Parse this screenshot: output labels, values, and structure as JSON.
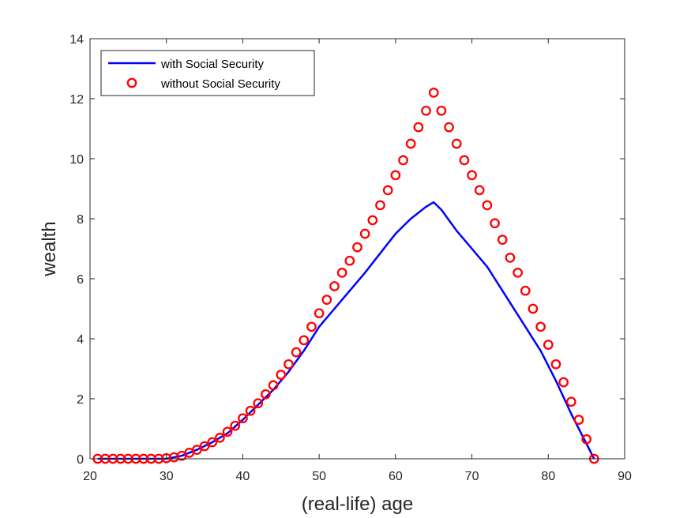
{
  "chart_data": {
    "type": "line",
    "xlabel": "(real-life) age",
    "ylabel": "wealth",
    "xlim": [
      20,
      90
    ],
    "ylim": [
      0,
      14
    ],
    "xticks": [
      20,
      30,
      40,
      50,
      60,
      70,
      80,
      90
    ],
    "yticks": [
      0,
      2,
      4,
      6,
      8,
      10,
      12,
      14
    ],
    "grid": false,
    "legend_position": "top-left",
    "series": [
      {
        "name": "with Social Security",
        "style": "line",
        "color": "#0000ff",
        "x": [
          21,
          30,
          32,
          34,
          36,
          38,
          40,
          42,
          44,
          46,
          48,
          50,
          52,
          54,
          56,
          58,
          60,
          62,
          64,
          65,
          66,
          68,
          70,
          72,
          73,
          75,
          77,
          79,
          81,
          83,
          85,
          86
        ],
        "y": [
          0,
          0,
          0.1,
          0.3,
          0.55,
          0.85,
          1.3,
          1.8,
          2.3,
          2.9,
          3.6,
          4.4,
          5.0,
          5.6,
          6.2,
          6.85,
          7.5,
          8.0,
          8.4,
          8.55,
          8.3,
          7.6,
          7.0,
          6.4,
          6.0,
          5.2,
          4.4,
          3.6,
          2.6,
          1.5,
          0.5,
          0.0
        ]
      },
      {
        "name": "without Social Security",
        "style": "circles",
        "color": "#ff0000",
        "x": [
          21,
          22,
          23,
          24,
          25,
          26,
          27,
          28,
          29,
          30,
          31,
          32,
          33,
          34,
          35,
          36,
          37,
          38,
          39,
          40,
          41,
          42,
          43,
          44,
          45,
          46,
          47,
          48,
          49,
          50,
          51,
          52,
          53,
          54,
          55,
          56,
          57,
          58,
          59,
          60,
          61,
          62,
          63,
          64,
          65,
          66,
          67,
          68,
          69,
          70,
          71,
          72,
          73,
          74,
          75,
          76,
          77,
          78,
          79,
          80,
          81,
          82,
          83,
          84,
          85,
          86
        ],
        "y": [
          0,
          0,
          0,
          0,
          0,
          0,
          0,
          0,
          0,
          0.02,
          0.05,
          0.1,
          0.2,
          0.3,
          0.42,
          0.55,
          0.7,
          0.9,
          1.1,
          1.35,
          1.6,
          1.85,
          2.15,
          2.45,
          2.8,
          3.15,
          3.55,
          3.95,
          4.4,
          4.85,
          5.3,
          5.75,
          6.2,
          6.6,
          7.05,
          7.5,
          7.95,
          8.45,
          8.95,
          9.45,
          9.95,
          10.5,
          11.05,
          11.6,
          12.2,
          11.6,
          11.05,
          10.5,
          9.95,
          9.45,
          8.95,
          8.45,
          7.85,
          7.3,
          6.7,
          6.2,
          5.6,
          5.0,
          4.4,
          3.8,
          3.15,
          2.55,
          1.9,
          1.3,
          0.65,
          0.0
        ]
      }
    ]
  }
}
